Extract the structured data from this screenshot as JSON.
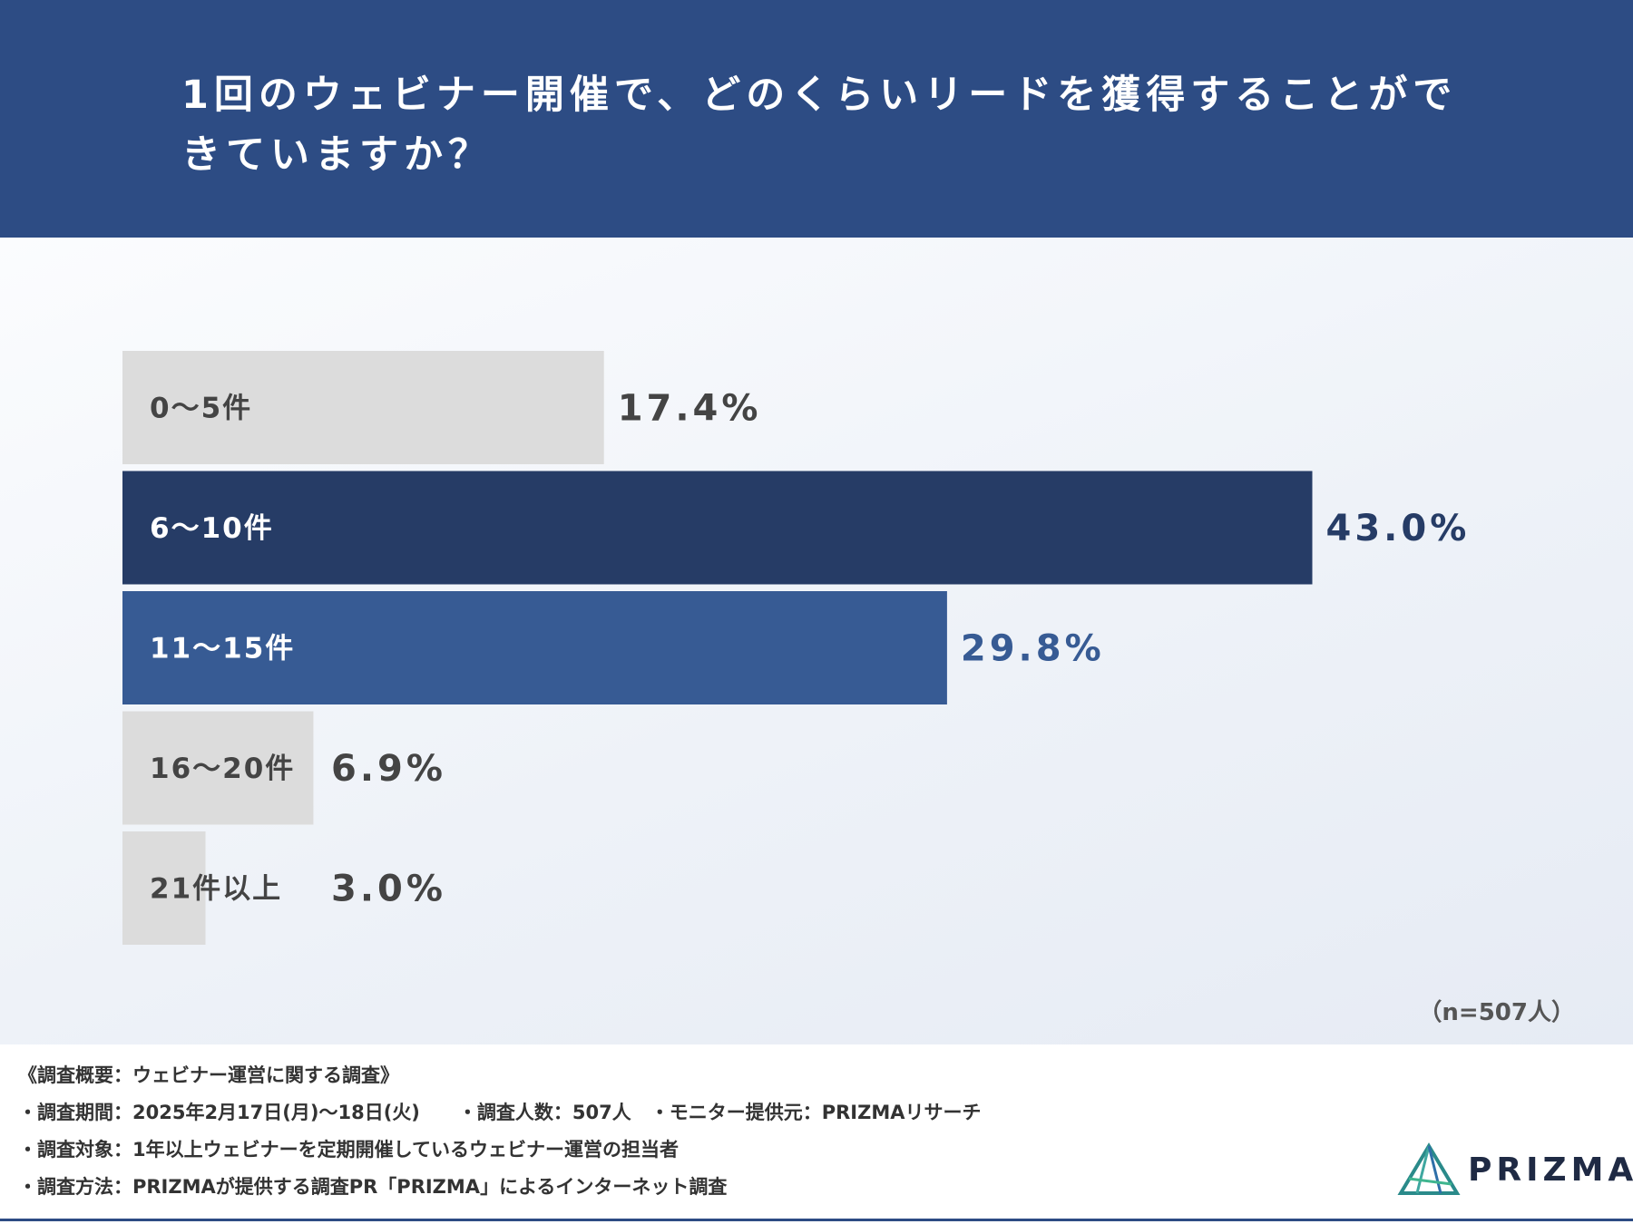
{
  "title": "1回のウェビナー開催で、どのくらいリードを獲得することができていますか？",
  "chart_data": {
    "type": "bar",
    "orientation": "horizontal",
    "categories": [
      "0〜5件",
      "6〜10件",
      "11〜15件",
      "16〜20件",
      "21件以上"
    ],
    "values": [
      17.4,
      43.0,
      29.8,
      6.9,
      3.0
    ],
    "value_labels": [
      "17.4%",
      "43.0%",
      "29.8%",
      "6.9%",
      "3.0%"
    ],
    "unit": "%",
    "xlim": [
      0,
      50
    ],
    "grid": false,
    "legend": "none",
    "colors": [
      "#dcdcdc",
      "#263c66",
      "#375b94",
      "#dcdcdc",
      "#dcdcdc"
    ],
    "label_colors": [
      "#444444",
      "#ffffff",
      "#ffffff",
      "#444444",
      "#444444"
    ],
    "value_colors": [
      "#444444",
      "#263c66",
      "#375b94",
      "#444444",
      "#444444"
    ]
  },
  "sample_size": "（n=507人）",
  "footer": {
    "overview_items": [
      "《調査概要：ウェビナー運営に関する調査》",
      "・調査期間：2025年2月17日(月)〜18日(火)　　・調査人数：507人　・モニター提供元：PRIZMAリサーチ",
      "・調査対象：1年以上ウェビナーを定期開催しているウェビナー運営の担当者",
      "・調査方法：PRIZMAが提供する調査PR「PRIZMA」によるインターネット調査"
    ],
    "logo_text": "PRIZMA",
    "logo_icon": "prizma-triangle-logo"
  }
}
